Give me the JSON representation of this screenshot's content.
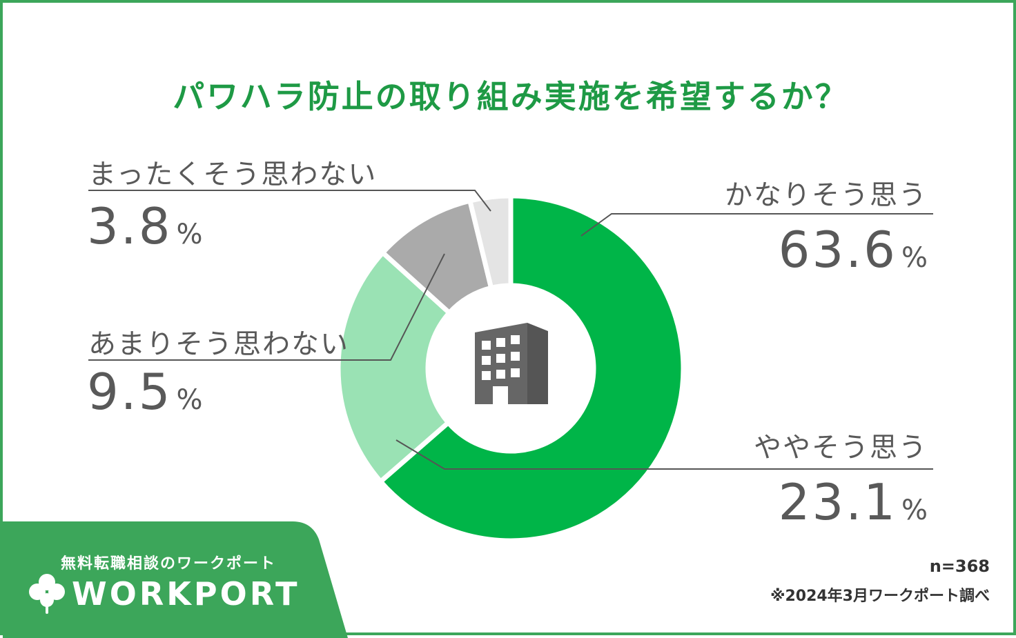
{
  "chart_data": {
    "type": "pie",
    "title": "パワハラ防止の取り組み実施を希望するか？",
    "unit": "%",
    "slices": [
      {
        "label": "かなりそう思う",
        "value": 63.6,
        "value_text": "63.6",
        "color": "#00b548"
      },
      {
        "label": "ややそう思う",
        "value": 23.1,
        "value_text": "23.1",
        "color": "#9ae2b4"
      },
      {
        "label": "あまりそう思わない",
        "value": 9.5,
        "value_text": "9.5",
        "color": "#aaaaaa"
      },
      {
        "label": "まったくそう思わない",
        "value": 3.8,
        "value_text": "3.8",
        "color": "#e4e4e4"
      }
    ]
  },
  "center_icon": "office-building-icon",
  "brand": {
    "tagline": "無料転職相談のワークポート",
    "logo_text": "WORKPORT",
    "logo_icon": "clover-icon",
    "color": "#3ca65a"
  },
  "footer": {
    "sample_size": "n=368",
    "source_note": "※2024年3月ワークポート調べ"
  }
}
